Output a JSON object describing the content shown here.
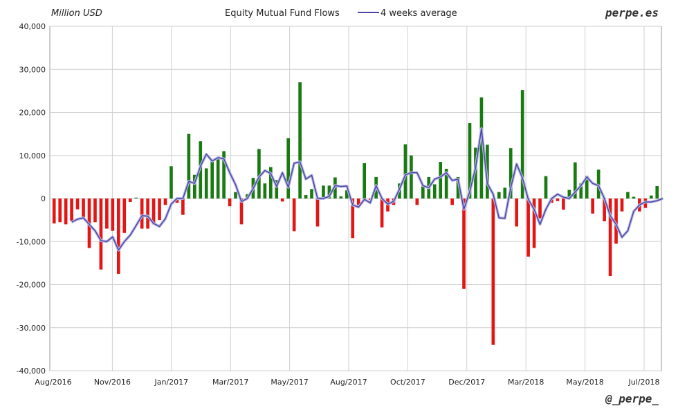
{
  "chart_data": {
    "type": "bar",
    "title": "Equity Mutual Fund Flows",
    "ylabel": "Million USD",
    "ylim": [
      -40000,
      40000
    ],
    "yticks": [
      "40,000",
      "30,000",
      "20,000",
      "10,000",
      "0",
      "-10,000",
      "-20,000",
      "-30,000",
      "-40,000"
    ],
    "xticks": [
      "Aug/2016",
      "Nov/2016",
      "Jan/2017",
      "Mar/2017",
      "May/2017",
      "Aug/2017",
      "Oct/2017",
      "Dec/2017",
      "Mar/2018",
      "May/2018",
      "Jul/2018"
    ],
    "grid": true,
    "legend": {
      "position": "top",
      "label": "4 weeks average"
    },
    "series": [
      {
        "type": "bar",
        "values": [
          -5800,
          -5500,
          -6000,
          -5200,
          -2500,
          -4500,
          -11500,
          -5500,
          -16500,
          -7000,
          -7500,
          -17500,
          -8000,
          -800,
          200,
          -7000,
          -7000,
          -6000,
          -5000,
          -1500,
          7500,
          -1000,
          -3800,
          15000,
          5500,
          13300,
          7000,
          9000,
          9500,
          11000,
          -1800,
          1500,
          -6000,
          1000,
          4800,
          11500,
          3500,
          7300,
          4300,
          -700,
          14000,
          -7600,
          27000,
          800,
          2200,
          -6500,
          3000,
          3000,
          4900,
          500,
          1900,
          -9200,
          -1500,
          8200,
          -300,
          5000,
          -6700,
          -3000,
          -1500,
          3500,
          12600,
          10000,
          -1500,
          2800,
          5000,
          3300,
          8500,
          6900,
          -1500,
          5000,
          -21000,
          17500,
          11800,
          23500,
          12500,
          -34000,
          1500,
          2500,
          11700,
          -6500,
          25200,
          -13500,
          -11500,
          -4600,
          5200,
          -1000,
          -600,
          -2600,
          2000,
          8400,
          3500,
          5300,
          -3500,
          6700,
          -5300,
          -18000,
          -10500,
          -3000,
          1500,
          400,
          -3000,
          -2200,
          700,
          2900
        ],
        "colors": {
          "positive": "#1a7a12",
          "negative": "#e31616"
        }
      },
      {
        "name": "4 weeks average",
        "type": "line",
        "color": "#4a47a3",
        "values": [
          null,
          null,
          null,
          -5500,
          -4800,
          -4500,
          -6000,
          -7500,
          -9800,
          -10000,
          -8900,
          -12000,
          -10000,
          -8500,
          -6300,
          -4000,
          -4100,
          -5800,
          -6500,
          -4700,
          -1300,
          0,
          0,
          4000,
          3500,
          7500,
          10300,
          8700,
          9500,
          9200,
          6000,
          3200,
          -700,
          0,
          2300,
          5000,
          6500,
          5800,
          2800,
          6000,
          2600,
          8200,
          8500,
          4500,
          5400,
          0,
          0,
          500,
          3000,
          2800,
          2900,
          -1500,
          -2000,
          -200,
          -1000,
          3000,
          0,
          -1300,
          -700,
          2200,
          5500,
          6000,
          6000,
          3000,
          2500,
          4500,
          5000,
          6000,
          4200,
          4500,
          -2500,
          1600,
          7200,
          16200,
          3500,
          1000,
          -4500,
          -4600,
          2500,
          8000,
          4800,
          -200,
          -2500,
          -6000,
          -2500,
          0,
          1000,
          300,
          0,
          1500,
          3000,
          5000,
          3500,
          3000,
          0,
          -4000,
          -6000,
          -9000,
          -7500,
          -3000,
          -1500,
          -800,
          -800,
          -500,
          0
        ]
      }
    ]
  },
  "brand": {
    "top_right": "perpe.es",
    "bottom_right": "@_perpe_"
  }
}
